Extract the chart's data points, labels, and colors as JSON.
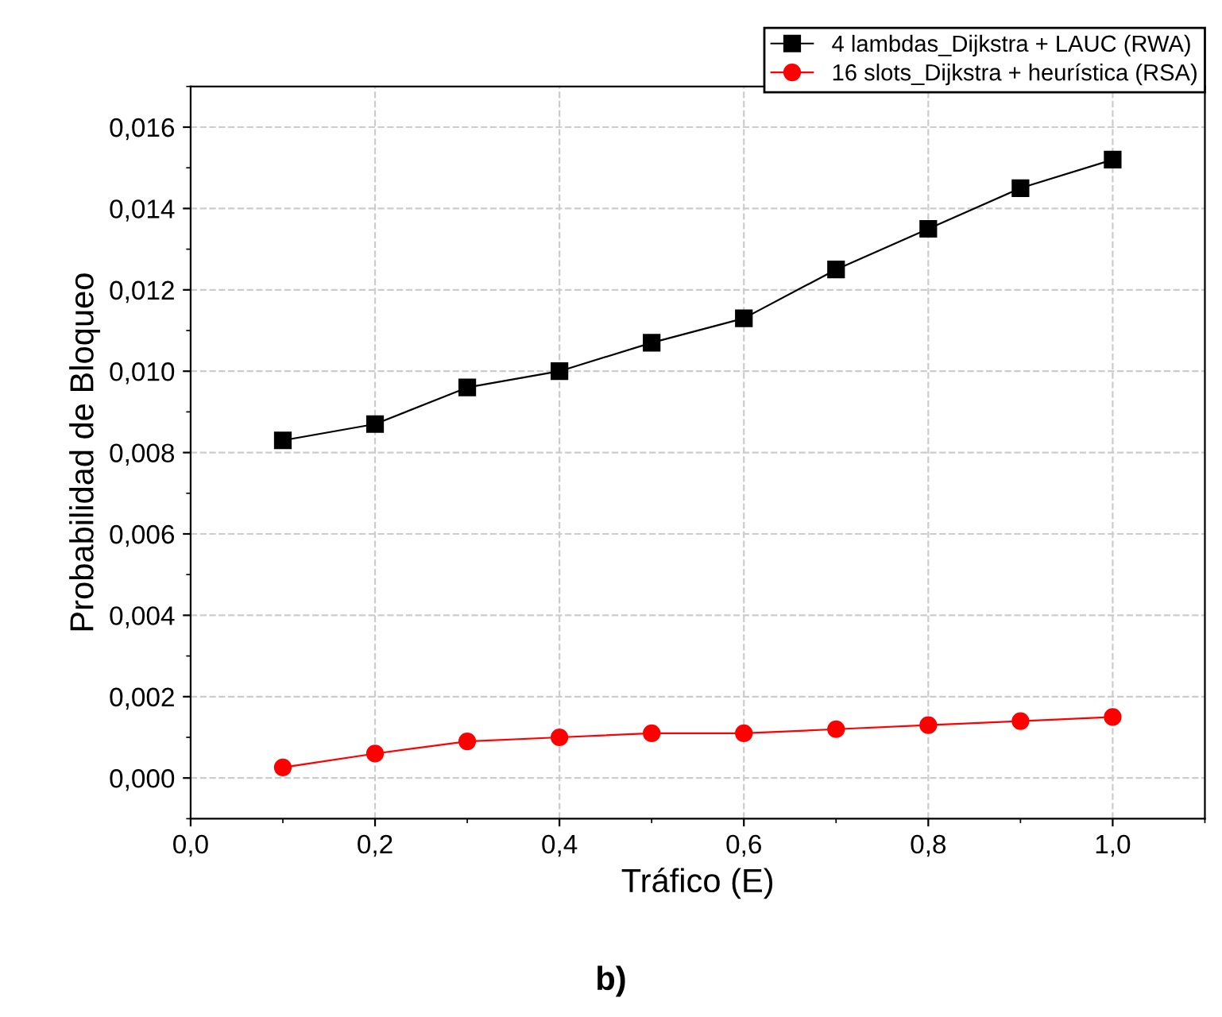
{
  "chart_data": {
    "type": "line",
    "xlabel": "Tráfico (E)",
    "ylabel": "Probabilidad de Bloqueo",
    "annotations": [
      "b)"
    ],
    "x": [
      0.1,
      0.2,
      0.3,
      0.4,
      0.5,
      0.6,
      0.7,
      0.8,
      0.9,
      1.0
    ],
    "series": [
      {
        "name": "4 lambdas_Dijkstra + LAUC (RWA)",
        "color": "#000000",
        "marker": "square",
        "values": [
          0.0083,
          0.0087,
          0.0096,
          0.01,
          0.0107,
          0.0113,
          0.0125,
          0.0135,
          0.0145,
          0.0152
        ]
      },
      {
        "name": "16 slots_Dijkstra + heurística (RSA)",
        "color": "#ff0000",
        "marker": "circle",
        "values": [
          0.00026,
          0.0006,
          0.0009,
          0.001,
          0.0011,
          0.0011,
          0.0012,
          0.0013,
          0.0014,
          0.0015
        ]
      }
    ],
    "xlim": [
      0,
      1.1
    ],
    "ylim": [
      -0.001,
      0.017
    ],
    "xticks": [
      {
        "value": 0,
        "label": "0,0"
      },
      {
        "value": 0.2,
        "label": "0,2"
      },
      {
        "value": 0.4,
        "label": "0,4"
      },
      {
        "value": 0.6,
        "label": "0,6"
      },
      {
        "value": 0.8,
        "label": "0,8"
      },
      {
        "value": 1.0,
        "label": "1,0"
      }
    ],
    "yticks": [
      {
        "value": 0,
        "label": "0,000"
      },
      {
        "value": 0.002,
        "label": "0,002"
      },
      {
        "value": 0.004,
        "label": "0,004"
      },
      {
        "value": 0.006,
        "label": "0,006"
      },
      {
        "value": 0.008,
        "label": "0,008"
      },
      {
        "value": 0.01,
        "label": "0,010"
      },
      {
        "value": 0.012,
        "label": "0,012"
      },
      {
        "value": 0.014,
        "label": "0,014"
      },
      {
        "value": 0.016,
        "label": "0,016"
      }
    ],
    "grid": true,
    "legend": "top right",
    "line_style": "solid"
  }
}
